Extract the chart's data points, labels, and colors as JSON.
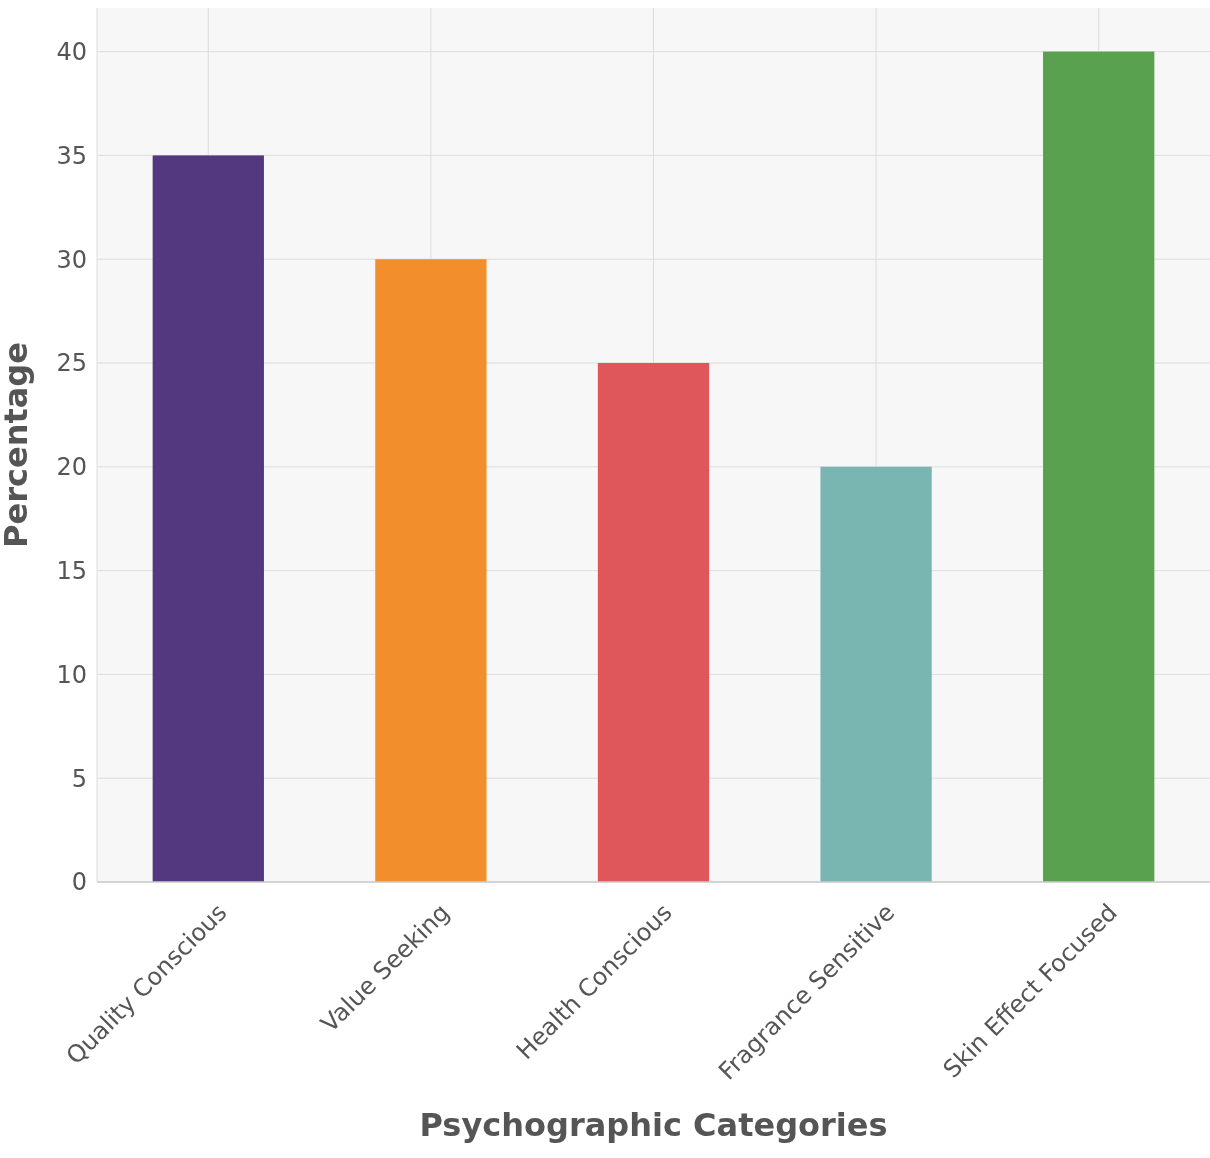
{
  "chart_data": {
    "type": "bar",
    "xlabel": "Psychographic Categories",
    "ylabel": "Percentage",
    "categories": [
      "Quality Conscious",
      "Value Seeking",
      "Health Conscious",
      "Fragrance Sensitive",
      "Skin Effect Focused"
    ],
    "values": [
      35,
      30,
      25,
      20,
      40
    ],
    "colors": [
      "#54387f",
      "#f28e2c",
      "#e0575b",
      "#79b5b1",
      "#59a14f"
    ],
    "ylim": [
      0,
      42.1
    ],
    "yticks": [
      0,
      5,
      10,
      15,
      20,
      25,
      30,
      35,
      40
    ],
    "grid": true
  }
}
